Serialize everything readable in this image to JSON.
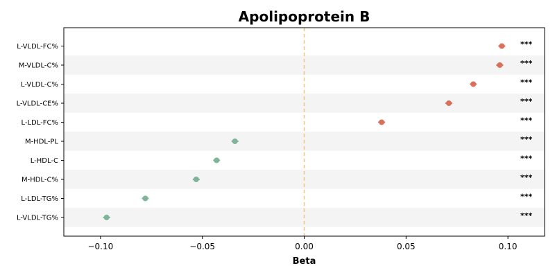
{
  "chart_data": {
    "type": "scatter",
    "title": "Apolipoprotein B",
    "xlabel": "Beta",
    "ylabel": "",
    "xlim": [
      -0.118,
      0.118
    ],
    "xticks": [
      -0.1,
      -0.05,
      0.0,
      0.05,
      0.1
    ],
    "xtick_labels": [
      "−0.10",
      "−0.05",
      "0.00",
      "0.05",
      "0.10"
    ],
    "reference_line": {
      "x": 0.0,
      "color": "#f5c27a",
      "style": "dashed"
    },
    "row_stripes": true,
    "grid": false,
    "colors": {
      "positive": "#d9705a",
      "negative": "#7fb39a",
      "stripe": "#f4f4f4"
    },
    "categories": [
      "L-VLDL-FC%",
      "M-VLDL-C%",
      "L-VLDL-C%",
      "L-VLDL-CE%",
      "L-LDL-FC%",
      "M-HDL-PL",
      "L-HDL-C",
      "M-HDL-C%",
      "L-LDL-TG%",
      "L-VLDL-TG%"
    ],
    "values": [
      0.097,
      0.096,
      0.083,
      0.071,
      0.038,
      -0.034,
      -0.043,
      -0.053,
      -0.078,
      -0.097
    ],
    "significance": [
      "***",
      "***",
      "***",
      "***",
      "***",
      "***",
      "***",
      "***",
      "***",
      "***"
    ]
  }
}
